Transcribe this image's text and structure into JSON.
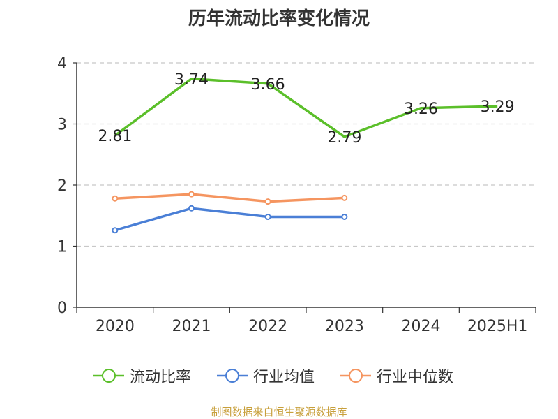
{
  "chart_data": {
    "type": "line",
    "title": "历年流动比率变化情况",
    "categories": [
      "2020",
      "2021",
      "2022",
      "2023",
      "2024",
      "2025H1"
    ],
    "ylim": [
      0,
      4
    ],
    "yticks": [
      "0",
      "1",
      "2",
      "3",
      "4"
    ],
    "grid": true,
    "legend_position": "bottom",
    "series": [
      {
        "name": "流动比率",
        "color": "#5bbf2a",
        "values": [
          2.81,
          3.74,
          3.66,
          2.79,
          3.26,
          3.29
        ],
        "labels": [
          "2.81",
          "3.74",
          "3.66",
          "2.79",
          "3.26",
          "3.29"
        ],
        "show_labels": true,
        "show_markers": false
      },
      {
        "name": "行业均值",
        "color": "#4a7fd6",
        "values": [
          1.26,
          1.62,
          1.48,
          1.48,
          null,
          null
        ],
        "show_labels": false,
        "show_markers": true
      },
      {
        "name": "行业中位数",
        "color": "#f59560",
        "values": [
          1.78,
          1.85,
          1.73,
          1.79,
          null,
          null
        ],
        "show_labels": false,
        "show_markers": true
      }
    ]
  },
  "source_note": "制图数据来自恒生聚源数据库"
}
